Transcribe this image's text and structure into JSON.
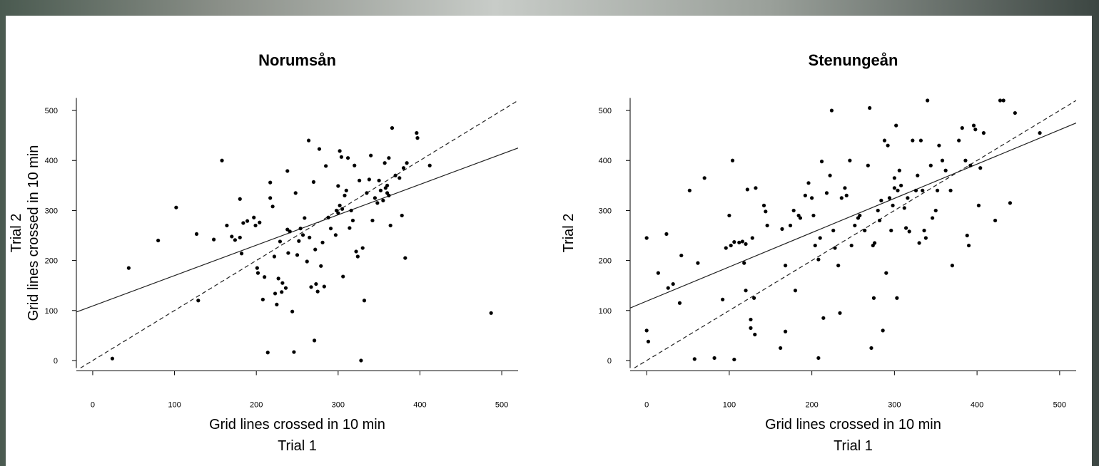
{
  "chart_data": [
    {
      "type": "scatter",
      "title": "Norumsån",
      "xlabel": [
        "Grid lines crossed in 10 min",
        "Trial 1"
      ],
      "ylabel": [
        "Trial 2",
        "Grid lines crossed in 10 min"
      ],
      "color": "#000000",
      "xlim": [
        -20,
        520
      ],
      "ylim": [
        -15,
        525
      ],
      "xticks": [
        0,
        100,
        200,
        300,
        400,
        500
      ],
      "yticks": [
        0,
        100,
        200,
        300,
        400,
        500
      ],
      "x": [
        24,
        44,
        80,
        102,
        127,
        129,
        148,
        158,
        164,
        170,
        174,
        180,
        180,
        182,
        184,
        189,
        197,
        199,
        201,
        202,
        204,
        208,
        210,
        214,
        217,
        217,
        220,
        222,
        223,
        225,
        227,
        229,
        231,
        232,
        236,
        238,
        238,
        239,
        241,
        244,
        246,
        248,
        250,
        252,
        254,
        257,
        259,
        262,
        264,
        265,
        267,
        270,
        271,
        272,
        273,
        275,
        277,
        279,
        281,
        283,
        285,
        288,
        291,
        297,
        300,
        302,
        304,
        306,
        298,
        300,
        302,
        305,
        308,
        310,
        312,
        314,
        316,
        318,
        320,
        322,
        324,
        326,
        328,
        330,
        332,
        335,
        338,
        340,
        342,
        345,
        348,
        350,
        352,
        355,
        357,
        358,
        360,
        360,
        362,
        362,
        364,
        366,
        370,
        375,
        378,
        380,
        382,
        384,
        396,
        397,
        412,
        487
      ],
      "y": [
        4,
        185,
        240,
        306,
        253,
        120,
        242,
        400,
        270,
        248,
        241,
        246,
        323,
        214,
        275,
        279,
        286,
        270,
        185,
        175,
        276,
        122,
        167,
        16,
        356,
        325,
        308,
        208,
        134,
        112,
        164,
        238,
        137,
        155,
        145,
        379,
        262,
        215,
        258,
        98,
        17,
        335,
        211,
        239,
        264,
        251,
        285,
        198,
        440,
        246,
        147,
        357,
        40,
        222,
        153,
        138,
        423,
        189,
        236,
        148,
        389,
        286,
        264,
        251,
        349,
        419,
        407,
        168,
        300,
        295,
        310,
        303,
        330,
        340,
        405,
        265,
        300,
        280,
        390,
        218,
        208,
        360,
        0,
        225,
        120,
        335,
        362,
        410,
        280,
        325,
        315,
        360,
        340,
        320,
        395,
        345,
        350,
        335,
        330,
        405,
        270,
        465,
        370,
        365,
        290,
        385,
        205,
        395,
        455,
        445,
        390,
        95
      ],
      "lines": [
        {
          "dashed": false,
          "x": [
            -20,
            520
          ],
          "y": [
            97,
            425
          ]
        },
        {
          "dashed": true,
          "x": [
            -15,
            520
          ],
          "y": [
            -15,
            520
          ]
        }
      ]
    },
    {
      "type": "scatter",
      "title": "Stenungeån",
      "xlabel": [
        "Grid lines crossed in 10 min",
        "Trial 1"
      ],
      "ylabel": [
        "Trial 2"
      ],
      "color": "#000000",
      "xlim": [
        -20,
        520
      ],
      "ylim": [
        -15,
        525
      ],
      "xticks": [
        0,
        100,
        200,
        300,
        400,
        500
      ],
      "yticks": [
        0,
        100,
        200,
        300,
        400,
        500
      ],
      "x": [
        0,
        0,
        2,
        14,
        24,
        26,
        32,
        40,
        42,
        52,
        58,
        62,
        70,
        82,
        92,
        96,
        100,
        102,
        104,
        106,
        106,
        112,
        116,
        118,
        120,
        120,
        122,
        126,
        126,
        128,
        130,
        131,
        132,
        142,
        144,
        146,
        162,
        164,
        168,
        168,
        174,
        178,
        180,
        184,
        186,
        192,
        196,
        200,
        202,
        204,
        208,
        208,
        210,
        212,
        214,
        218,
        222,
        224,
        226,
        228,
        232,
        234,
        236,
        240,
        242,
        246,
        248,
        252,
        256,
        258,
        264,
        268,
        270,
        272,
        274,
        275,
        276,
        280,
        282,
        284,
        286,
        288,
        290,
        292,
        294,
        296,
        298,
        300,
        300,
        302,
        303,
        304,
        306,
        308,
        312,
        314,
        316,
        318,
        322,
        326,
        328,
        330,
        332,
        334,
        336,
        338,
        340,
        344,
        346,
        350,
        352,
        354,
        358,
        362,
        368,
        370,
        378,
        382,
        386,
        388,
        390,
        392,
        396,
        398,
        402,
        404,
        408,
        422,
        428,
        432,
        440,
        446,
        476
      ],
      "y": [
        245,
        60,
        38,
        175,
        253,
        145,
        153,
        115,
        210,
        340,
        3,
        195,
        365,
        5,
        122,
        225,
        290,
        230,
        400,
        237,
        2,
        236,
        238,
        195,
        233,
        140,
        342,
        82,
        65,
        245,
        125,
        52,
        345,
        310,
        298,
        270,
        25,
        263,
        190,
        58,
        270,
        300,
        140,
        290,
        285,
        330,
        355,
        325,
        290,
        230,
        202,
        5,
        245,
        398,
        85,
        335,
        370,
        500,
        260,
        225,
        190,
        95,
        325,
        345,
        330,
        400,
        230,
        270,
        285,
        290,
        260,
        390,
        505,
        25,
        230,
        125,
        235,
        300,
        280,
        320,
        60,
        440,
        175,
        430,
        325,
        260,
        310,
        365,
        345,
        470,
        125,
        340,
        380,
        350,
        305,
        265,
        325,
        258,
        440,
        340,
        370,
        235,
        440,
        340,
        260,
        245,
        520,
        390,
        285,
        300,
        340,
        430,
        400,
        380,
        340,
        190,
        440,
        465,
        400,
        250,
        230,
        390,
        470,
        462,
        310,
        385,
        455,
        280,
        520,
        520,
        315,
        495,
        455
      ],
      "lines": [
        {
          "dashed": false,
          "x": [
            -20,
            520
          ],
          "y": [
            105,
            475
          ]
        },
        {
          "dashed": true,
          "x": [
            -15,
            520
          ],
          "y": [
            -15,
            520
          ]
        }
      ]
    }
  ]
}
